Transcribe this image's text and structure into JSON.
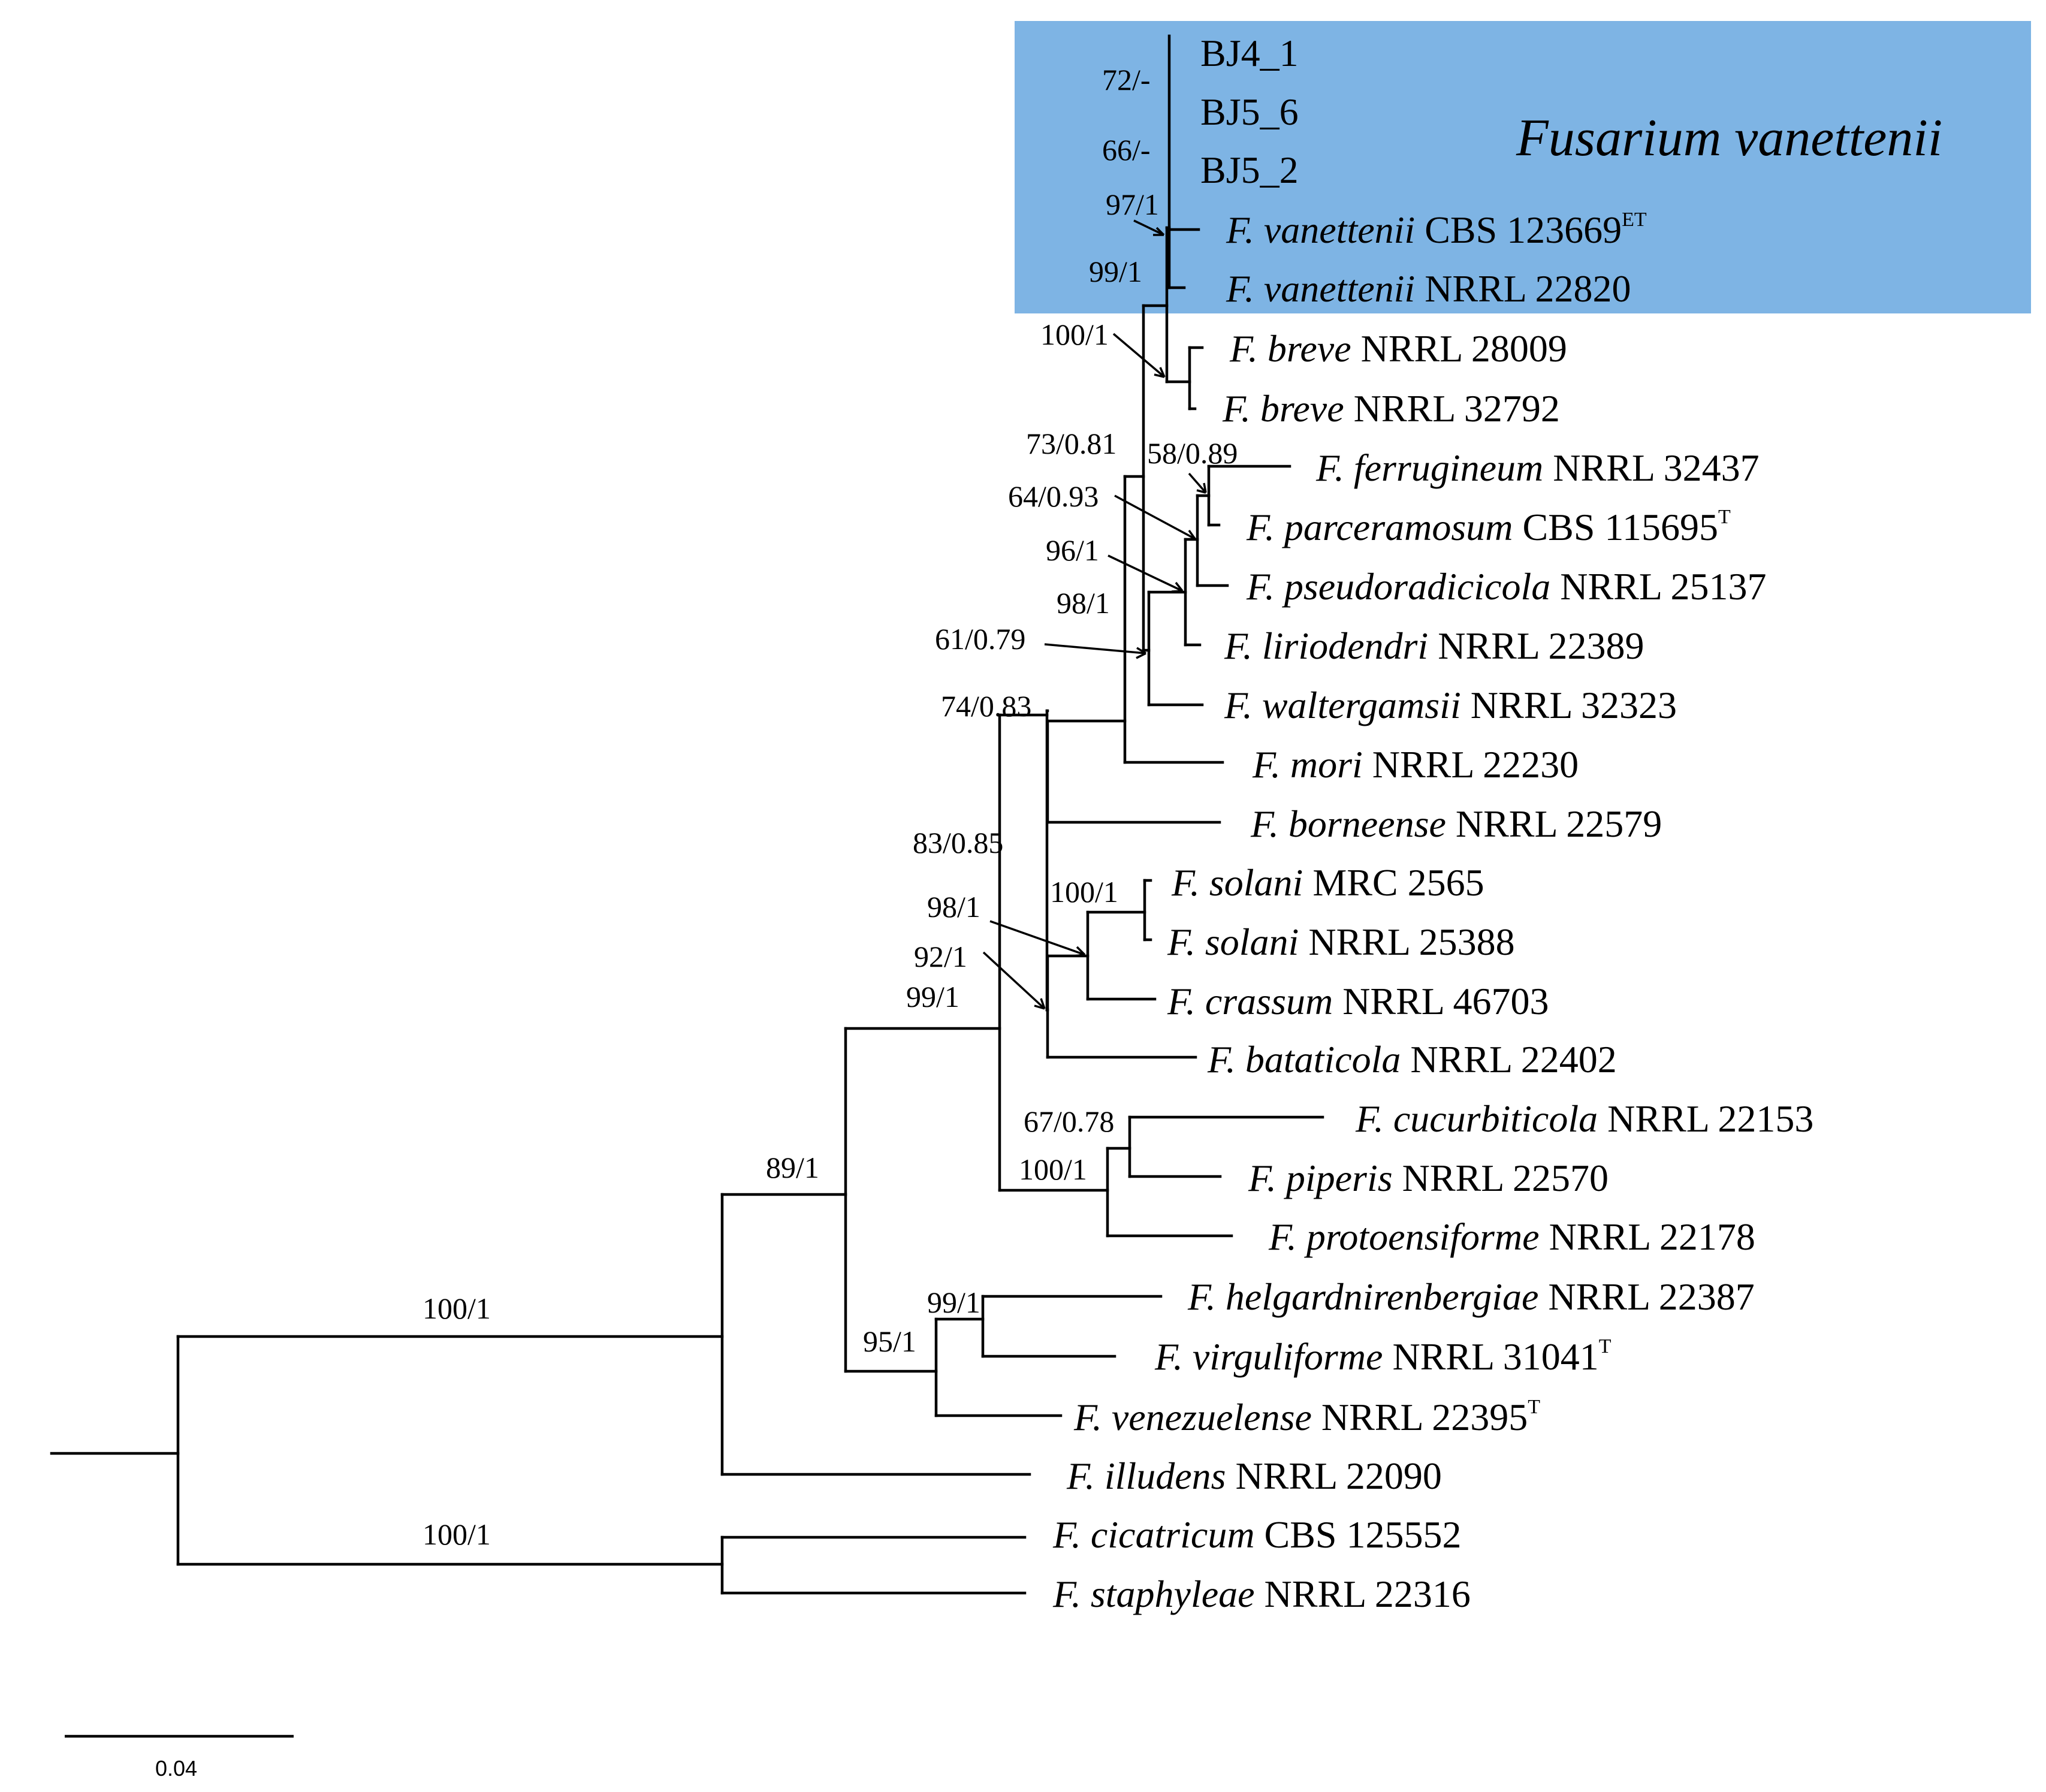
{
  "highlight": {
    "label": "Fusarium vanettenii",
    "color": "#7eb4e4"
  },
  "tips": {
    "bj4_1": {
      "code": "BJ4_1"
    },
    "bj5_6": {
      "code": "BJ5_6"
    },
    "bj5_2": {
      "code": "BJ5_2"
    },
    "van_cbs": {
      "species": "F. vanettenii",
      "strain": "CBS 123669",
      "sup": "ET"
    },
    "van_nrrl": {
      "species": "F. vanettenii",
      "strain": "NRRL 22820"
    },
    "breve1": {
      "species": "F. breve",
      "strain": "NRRL 28009"
    },
    "breve2": {
      "species": "F. breve",
      "strain": "NRRL 32792"
    },
    "ferrugineum": {
      "species": "F. ferrugineum",
      "strain": "NRRL 32437"
    },
    "parceramosum": {
      "species": "F. parceramosum",
      "strain": "CBS 115695",
      "sup": "T"
    },
    "pseudoradicicola": {
      "species": "F. pseudoradicicola",
      "strain": "NRRL 25137"
    },
    "liriodendri": {
      "species": "F. liriodendri",
      "strain": "NRRL 22389"
    },
    "waltergamsii": {
      "species": "F. waltergamsii",
      "strain": "NRRL 32323"
    },
    "mori": {
      "species": "F. mori",
      "strain": "NRRL 22230"
    },
    "borneense": {
      "species": "F. borneense",
      "strain": "NRRL 22579"
    },
    "solani1": {
      "species": "F. solani",
      "strain": "MRC 2565"
    },
    "solani2": {
      "species": "F. solani",
      "strain": "NRRL 25388"
    },
    "crassum": {
      "species": "F. crassum",
      "strain": "NRRL 46703"
    },
    "bataticola": {
      "species": "F. bataticola",
      "strain": "NRRL 22402"
    },
    "cucurbiticola": {
      "species": "F. cucurbiticola",
      "strain": "NRRL 22153"
    },
    "piperis": {
      "species": "F. piperis",
      "strain": "NRRL 22570"
    },
    "protoensiforme": {
      "species": "F. protoensiforme",
      "strain": "NRRL 22178"
    },
    "helgardnirenbergiae": {
      "species": "F. helgardnirenbergiae",
      "strain": "NRRL 22387"
    },
    "virguliforme": {
      "species": "F. virguliforme",
      "strain": "NRRL 31041",
      "sup": "T"
    },
    "venezuelense": {
      "species": "F. venezuelense",
      "strain": "NRRL 22395",
      "sup": "T"
    },
    "illudens": {
      "species": "F. illudens",
      "strain": "NRRL 22090"
    },
    "cicatricum": {
      "species": "F. cicatricum",
      "strain": "CBS 125552"
    },
    "staphyleae": {
      "species": "F. staphyleae",
      "strain": "NRRL 22316"
    }
  },
  "supports": {
    "s72": "72/-",
    "s66": "66/-",
    "s97": "97/1",
    "s99a": "99/1",
    "s100a": "100/1",
    "s73": "73/0.81",
    "s58": "58/0.89",
    "s64": "64/0.93",
    "s96": "96/1",
    "s98a": "98/1",
    "s61": "61/0.79",
    "s74": "74/0.83",
    "s83": "83/0.85",
    "s100b": "100/1",
    "s98b": "98/1",
    "s92": "92/1",
    "s99b": "99/1",
    "s67": "67/0.78",
    "s100c": "100/1",
    "s89": "89/1",
    "s99c": "99/1",
    "s95": "95/1",
    "s100d": "100/1",
    "s100e": "100/1"
  },
  "scale_bar": {
    "label": "0.04"
  }
}
